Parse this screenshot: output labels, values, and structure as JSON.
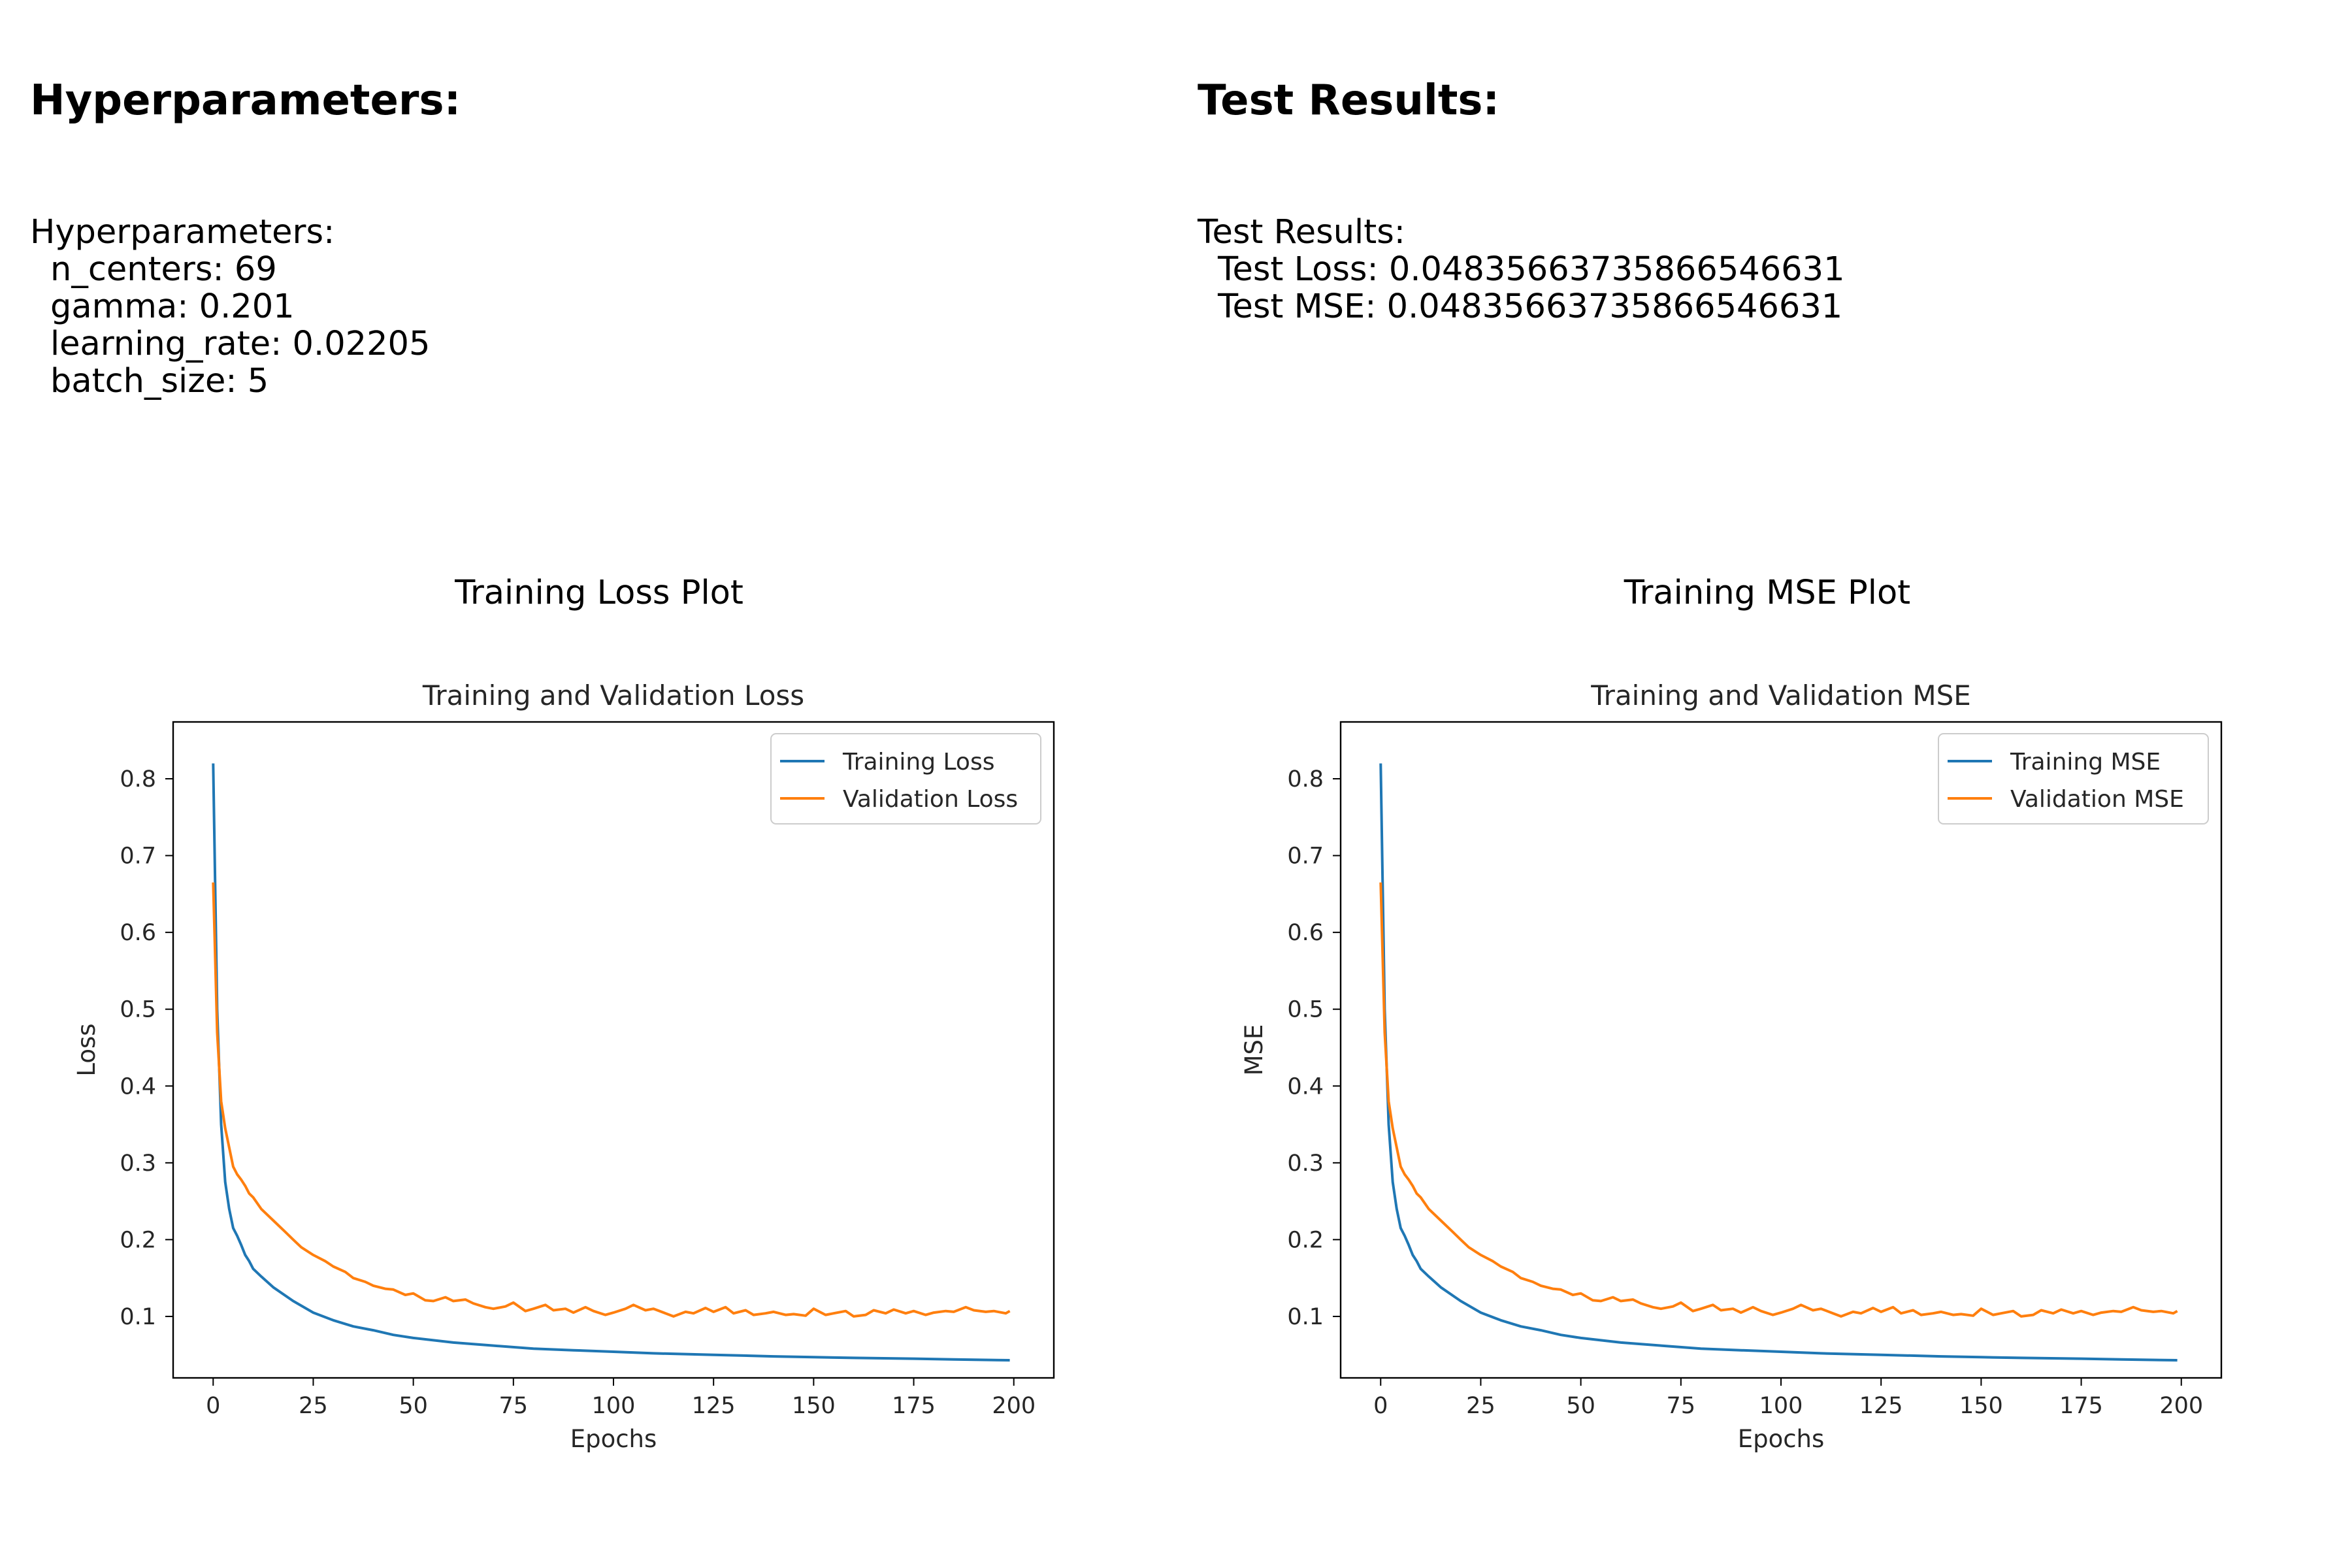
{
  "left_panel": {
    "heading": "Hyperparameters:",
    "block_title": "Hyperparameters:",
    "lines": [
      "n_centers: 69",
      "gamma: 0.201",
      "learning_rate: 0.02205",
      "batch_size: 5"
    ],
    "plot_heading": "Training Loss Plot"
  },
  "right_panel": {
    "heading": "Test Results:",
    "block_title": "Test Results:",
    "lines": [
      "Test Loss: 0.04835663735866546631",
      "Test MSE: 0.04835663735866546631"
    ],
    "plot_heading": "Training MSE Plot"
  },
  "colors": {
    "training": "#1f77b4",
    "validation": "#ff7f0e"
  },
  "chart_data": [
    {
      "type": "line",
      "title": "Training and Validation Loss",
      "xlabel": "Epochs",
      "ylabel": "Loss",
      "xlim": [
        -10,
        210
      ],
      "ylim": [
        0.02,
        0.874
      ],
      "xticks": [
        0,
        25,
        50,
        75,
        100,
        125,
        150,
        175,
        200
      ],
      "yticks": [
        0.1,
        0.2,
        0.3,
        0.4,
        0.5,
        0.6,
        0.7,
        0.8
      ],
      "grid": false,
      "legend": "top-right",
      "series": [
        {
          "name": "Training Loss",
          "color": "#1f77b4",
          "x": [
            0,
            1,
            2,
            3,
            4,
            5,
            6,
            7,
            8,
            9,
            10,
            12,
            15,
            20,
            25,
            30,
            35,
            40,
            45,
            50,
            60,
            70,
            80,
            90,
            100,
            110,
            125,
            140,
            150,
            160,
            175,
            185,
            199
          ],
          "y": [
            0.82,
            0.5,
            0.35,
            0.275,
            0.24,
            0.215,
            0.205,
            0.193,
            0.18,
            0.172,
            0.162,
            0.152,
            0.138,
            0.12,
            0.105,
            0.095,
            0.087,
            0.082,
            0.076,
            0.072,
            0.066,
            0.062,
            0.058,
            0.056,
            0.054,
            0.052,
            0.05,
            0.048,
            0.047,
            0.046,
            0.045,
            0.044,
            0.043
          ]
        },
        {
          "name": "Validation Loss",
          "color": "#ff7f0e",
          "x": [
            0,
            1,
            2,
            3,
            4,
            5,
            6,
            7,
            8,
            9,
            10,
            12,
            15,
            18,
            20,
            22,
            25,
            28,
            30,
            33,
            35,
            38,
            40,
            43,
            45,
            48,
            50,
            53,
            55,
            58,
            60,
            63,
            65,
            68,
            70,
            73,
            75,
            78,
            80,
            83,
            85,
            88,
            90,
            93,
            95,
            98,
            100,
            103,
            105,
            108,
            110,
            113,
            115,
            118,
            120,
            123,
            125,
            128,
            130,
            133,
            135,
            138,
            140,
            143,
            145,
            148,
            150,
            153,
            155,
            158,
            160,
            163,
            165,
            168,
            170,
            173,
            175,
            178,
            180,
            183,
            185,
            188,
            190,
            193,
            195,
            198,
            199
          ],
          "y": [
            0.665,
            0.47,
            0.38,
            0.345,
            0.32,
            0.295,
            0.285,
            0.278,
            0.27,
            0.26,
            0.255,
            0.24,
            0.225,
            0.21,
            0.2,
            0.19,
            0.18,
            0.172,
            0.165,
            0.158,
            0.15,
            0.145,
            0.14,
            0.136,
            0.135,
            0.128,
            0.13,
            0.121,
            0.12,
            0.125,
            0.12,
            0.122,
            0.117,
            0.112,
            0.11,
            0.113,
            0.118,
            0.107,
            0.11,
            0.115,
            0.108,
            0.11,
            0.105,
            0.112,
            0.107,
            0.102,
            0.105,
            0.11,
            0.115,
            0.108,
            0.11,
            0.104,
            0.1,
            0.106,
            0.104,
            0.111,
            0.106,
            0.112,
            0.104,
            0.108,
            0.102,
            0.104,
            0.106,
            0.102,
            0.103,
            0.101,
            0.11,
            0.102,
            0.104,
            0.107,
            0.1,
            0.102,
            0.108,
            0.104,
            0.109,
            0.104,
            0.107,
            0.102,
            0.105,
            0.107,
            0.106,
            0.112,
            0.108,
            0.106,
            0.107,
            0.104,
            0.107
          ]
        }
      ]
    },
    {
      "type": "line",
      "title": "Training and Validation MSE",
      "xlabel": "Epochs",
      "ylabel": "MSE",
      "xlim": [
        -10,
        210
      ],
      "ylim": [
        0.02,
        0.874
      ],
      "xticks": [
        0,
        25,
        50,
        75,
        100,
        125,
        150,
        175,
        200
      ],
      "yticks": [
        0.1,
        0.2,
        0.3,
        0.4,
        0.5,
        0.6,
        0.7,
        0.8
      ],
      "grid": false,
      "legend": "top-right",
      "series": [
        {
          "name": "Training MSE",
          "color": "#1f77b4",
          "x": [
            0,
            1,
            2,
            3,
            4,
            5,
            6,
            7,
            8,
            9,
            10,
            12,
            15,
            20,
            25,
            30,
            35,
            40,
            45,
            50,
            60,
            70,
            80,
            90,
            100,
            110,
            125,
            140,
            150,
            160,
            175,
            185,
            199
          ],
          "y": [
            0.82,
            0.5,
            0.35,
            0.275,
            0.24,
            0.215,
            0.205,
            0.193,
            0.18,
            0.172,
            0.162,
            0.152,
            0.138,
            0.12,
            0.105,
            0.095,
            0.087,
            0.082,
            0.076,
            0.072,
            0.066,
            0.062,
            0.058,
            0.056,
            0.054,
            0.052,
            0.05,
            0.048,
            0.047,
            0.046,
            0.045,
            0.044,
            0.043
          ]
        },
        {
          "name": "Validation MSE",
          "color": "#ff7f0e",
          "x": [
            0,
            1,
            2,
            3,
            4,
            5,
            6,
            7,
            8,
            9,
            10,
            12,
            15,
            18,
            20,
            22,
            25,
            28,
            30,
            33,
            35,
            38,
            40,
            43,
            45,
            48,
            50,
            53,
            55,
            58,
            60,
            63,
            65,
            68,
            70,
            73,
            75,
            78,
            80,
            83,
            85,
            88,
            90,
            93,
            95,
            98,
            100,
            103,
            105,
            108,
            110,
            113,
            115,
            118,
            120,
            123,
            125,
            128,
            130,
            133,
            135,
            138,
            140,
            143,
            145,
            148,
            150,
            153,
            155,
            158,
            160,
            163,
            165,
            168,
            170,
            173,
            175,
            178,
            180,
            183,
            185,
            188,
            190,
            193,
            195,
            198,
            199
          ],
          "y": [
            0.665,
            0.47,
            0.38,
            0.345,
            0.32,
            0.295,
            0.285,
            0.278,
            0.27,
            0.26,
            0.255,
            0.24,
            0.225,
            0.21,
            0.2,
            0.19,
            0.18,
            0.172,
            0.165,
            0.158,
            0.15,
            0.145,
            0.14,
            0.136,
            0.135,
            0.128,
            0.13,
            0.121,
            0.12,
            0.125,
            0.12,
            0.122,
            0.117,
            0.112,
            0.11,
            0.113,
            0.118,
            0.107,
            0.11,
            0.115,
            0.108,
            0.11,
            0.105,
            0.112,
            0.107,
            0.102,
            0.105,
            0.11,
            0.115,
            0.108,
            0.11,
            0.104,
            0.1,
            0.106,
            0.104,
            0.111,
            0.106,
            0.112,
            0.104,
            0.108,
            0.102,
            0.104,
            0.106,
            0.102,
            0.103,
            0.101,
            0.11,
            0.102,
            0.104,
            0.107,
            0.1,
            0.102,
            0.108,
            0.104,
            0.109,
            0.104,
            0.107,
            0.102,
            0.105,
            0.107,
            0.106,
            0.112,
            0.108,
            0.106,
            0.107,
            0.104,
            0.107
          ]
        }
      ]
    }
  ]
}
